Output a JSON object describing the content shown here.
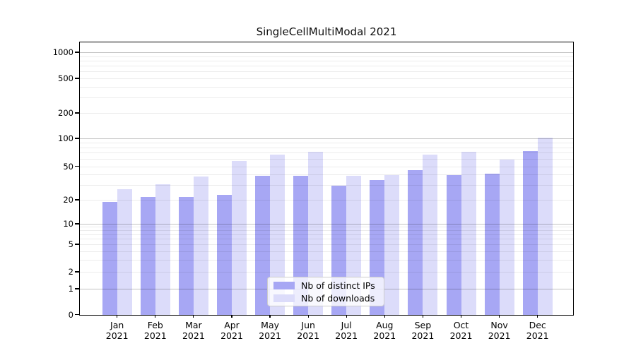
{
  "chart_data": {
    "type": "bar",
    "title": "SingleCellMultiModal 2021",
    "categories": [
      "Jan 2021",
      "Feb 2021",
      "Mar 2021",
      "Apr 2021",
      "May 2021",
      "Jun 2021",
      "Jul 2021",
      "Aug 2021",
      "Sep 2021",
      "Oct 2021",
      "Nov 2021",
      "Dec 2021"
    ],
    "series": [
      {
        "name": "Nb of distinct IPs",
        "color": "#a7a7f4",
        "values": [
          19,
          22,
          22,
          23,
          39,
          39,
          30,
          35,
          45,
          40,
          41,
          73
        ]
      },
      {
        "name": "Nb of downloads",
        "color": "#dcdcfa",
        "values": [
          27,
          31,
          38,
          58,
          67,
          72,
          39,
          40,
          67,
          72,
          60,
          104
        ]
      }
    ],
    "yscale": "log-like (0,1,2,5 × powers of 10)",
    "yticks": [
      0,
      1,
      2,
      5,
      10,
      20,
      50,
      100,
      200,
      500,
      1000
    ],
    "ytick_labels": [
      "0",
      "1",
      "2",
      "5",
      "10",
      "20",
      "50",
      "100",
      "200",
      "500",
      "1000"
    ],
    "xlabel": "",
    "ylabel": "",
    "grid": "horizontal, minor + major (majors at 1, 10, 100, 1000)",
    "legend_position": "lower center"
  },
  "colors": {
    "background": "#ffffff",
    "axis": "#000000",
    "ips_bar": "#a7a7f4",
    "downloads_bar": "#dcdcfa",
    "major_grid": "#c7c7c7",
    "minor_grid": "#ededed",
    "legend_border": "#cccccc"
  }
}
